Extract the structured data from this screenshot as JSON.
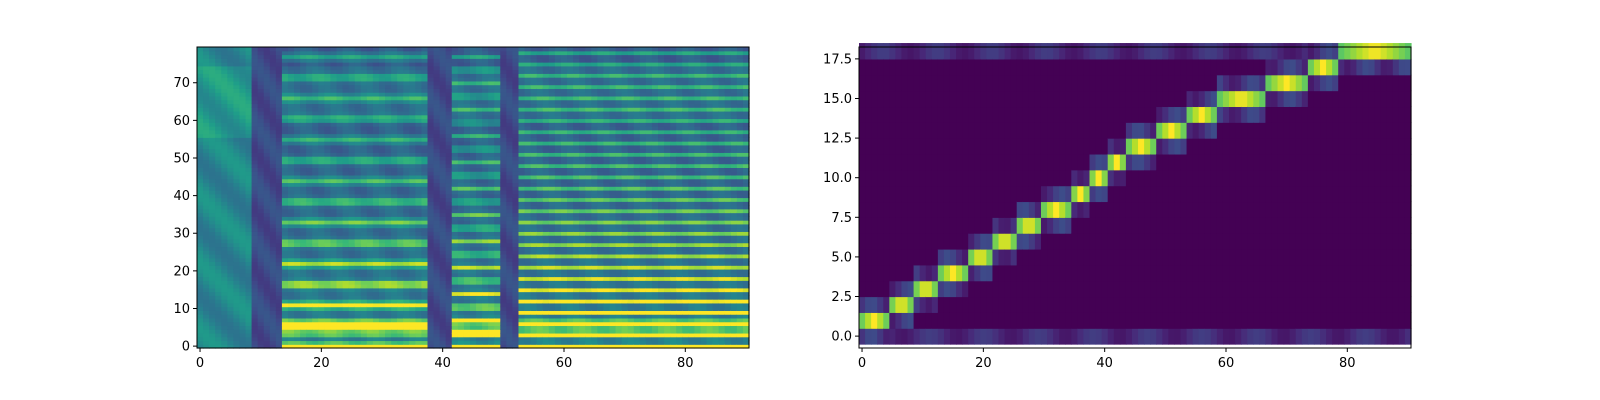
{
  "chart_data": [
    {
      "type": "heatmap",
      "title": "",
      "xlabel": "",
      "ylabel": "",
      "description": "mel spectrogram",
      "colormap": "viridis",
      "n_frames": 91,
      "n_bins": 80,
      "xlim": [
        -0.5,
        90.5
      ],
      "ylim": [
        -0.5,
        79.5
      ],
      "xticks": [
        0,
        20,
        40,
        60,
        80
      ],
      "xtick_labels": [
        "0",
        "20",
        "40",
        "60",
        "80"
      ],
      "yticks": [
        0,
        10,
        20,
        30,
        40,
        50,
        60,
        70
      ],
      "ytick_labels": [
        "0",
        "10",
        "20",
        "30",
        "40",
        "50",
        "60",
        "70"
      ],
      "segments": [
        {
          "start": 0,
          "end": 8,
          "kind": "silence"
        },
        {
          "start": 9,
          "end": 13,
          "kind": "gap"
        },
        {
          "start": 14,
          "end": 37,
          "kind": "voiced",
          "f0_bin": 5.5
        },
        {
          "start": 39,
          "end": 41,
          "kind": "gap"
        },
        {
          "start": 42,
          "end": 49,
          "kind": "voiced",
          "f0_bin": 3.5
        },
        {
          "start": 50,
          "end": 52,
          "kind": "gap"
        },
        {
          "start": 53,
          "end": 90,
          "kind": "voiced",
          "f0_bin": 3.0
        }
      ]
    },
    {
      "type": "heatmap",
      "title": "",
      "xlabel": "",
      "ylabel": "",
      "description": "attention alignment",
      "colormap": "viridis",
      "n_frames": 91,
      "n_tokens": 19,
      "xlim": [
        -0.5,
        90.5
      ],
      "ylim": [
        -0.75,
        18.25
      ],
      "xticks": [
        0,
        20,
        40,
        60,
        80
      ],
      "xtick_labels": [
        "0",
        "20",
        "40",
        "60",
        "80"
      ],
      "yticks": [
        0,
        2.5,
        5,
        7.5,
        10,
        12.5,
        15,
        17.5
      ],
      "ytick_labels": [
        "0.0",
        "2.5",
        "5.0",
        "7.5",
        "10.0",
        "12.5",
        "15.0",
        "17.5"
      ],
      "alignment_path": [
        {
          "token": 1,
          "start": 0,
          "end": 4
        },
        {
          "token": 2,
          "start": 5,
          "end": 8
        },
        {
          "token": 3,
          "start": 9,
          "end": 12
        },
        {
          "token": 4,
          "start": 13,
          "end": 17
        },
        {
          "token": 5,
          "start": 18,
          "end": 21
        },
        {
          "token": 6,
          "start": 22,
          "end": 25
        },
        {
          "token": 7,
          "start": 26,
          "end": 29
        },
        {
          "token": 8,
          "start": 30,
          "end": 34
        },
        {
          "token": 9,
          "start": 35,
          "end": 37
        },
        {
          "token": 10,
          "start": 38,
          "end": 40
        },
        {
          "token": 11,
          "start": 41,
          "end": 43
        },
        {
          "token": 12,
          "start": 44,
          "end": 48
        },
        {
          "token": 13,
          "start": 49,
          "end": 53
        },
        {
          "token": 14,
          "start": 54,
          "end": 58
        },
        {
          "token": 15,
          "start": 59,
          "end": 66
        },
        {
          "token": 16,
          "start": 67,
          "end": 73
        },
        {
          "token": 17,
          "start": 74,
          "end": 78
        },
        {
          "token": 18,
          "start": 79,
          "end": 90
        }
      ]
    }
  ]
}
